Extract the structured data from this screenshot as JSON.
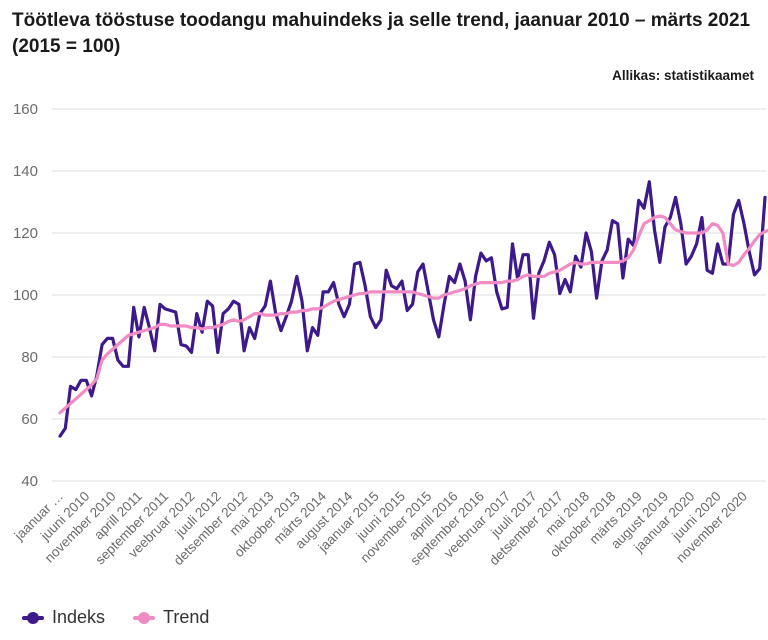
{
  "title": "Töötleva tööstuse toodangu mahuindeks ja selle trend, jaanuar 2010 – märts 2021 (2015 = 100)",
  "source": "Allikas: statistikaamet",
  "colors": {
    "index": "#3d1a8c",
    "trend": "#f08cc3",
    "grid": "#dddddd"
  },
  "chart_data": {
    "type": "line",
    "title": "Töötleva tööstuse toodangu mahuindeks ja selle trend, jaanuar 2010 – märts 2021 (2015 = 100)",
    "xlabel": "",
    "ylabel": "",
    "ylim": [
      40,
      160
    ],
    "yticks": [
      40,
      60,
      80,
      100,
      120,
      140,
      160
    ],
    "grid": true,
    "legend_position": "bottom-left",
    "x_tick_labels": [
      "jaanuar …",
      "juuni 2010",
      "november 2010",
      "aprill 2011",
      "september 2011",
      "veebruar 2012",
      "juuli 2012",
      "detsember 2012",
      "mai 2013",
      "oktoober 2013",
      "märts 2014",
      "august 2014",
      "jaanuar 2015",
      "juuni 2015",
      "november 2015",
      "aprill 2016",
      "september 2016",
      "veebruar 2017",
      "juuli 2017",
      "detsember 2017",
      "mai 2018",
      "oktoober 2018",
      "märts 2019",
      "august 2019",
      "jaanuar 2020",
      "juuni 2020",
      "november 2020"
    ],
    "x_tick_indices": [
      0,
      5,
      10,
      15,
      20,
      25,
      30,
      35,
      40,
      45,
      50,
      55,
      60,
      65,
      70,
      75,
      80,
      85,
      90,
      95,
      100,
      105,
      110,
      115,
      120,
      125,
      130
    ],
    "start": "jaanuar 2010",
    "end": "märts 2021",
    "series": [
      {
        "name": "Indeks",
        "values": [
          54.5,
          57,
          70.5,
          69.5,
          72.5,
          72.5,
          67.5,
          74,
          84,
          86,
          86,
          79,
          77,
          77,
          96,
          86.5,
          96,
          89.5,
          82,
          97,
          95.5,
          95,
          94.5,
          84,
          83.5,
          81.5,
          94,
          88,
          98,
          96.5,
          81.5,
          94,
          95.5,
          98,
          97,
          82,
          89.5,
          86,
          94,
          96.5,
          104.5,
          94,
          88.5,
          93,
          98,
          106,
          98,
          82,
          89.5,
          87,
          101,
          101,
          104,
          97,
          93,
          97,
          110,
          110.5,
          103,
          93,
          89.5,
          92,
          108,
          103,
          102,
          104.5,
          95,
          97,
          107.5,
          110,
          101,
          92,
          86.5,
          97,
          106,
          104,
          110,
          104.5,
          92,
          106,
          113.5,
          111,
          112,
          101,
          95.5,
          96,
          116.5,
          105,
          113,
          113,
          92.5,
          107,
          111,
          117,
          113,
          100.5,
          105,
          101,
          112.5,
          109,
          120,
          114,
          99,
          111,
          114.5,
          124,
          123,
          105.5,
          118,
          116,
          130.5,
          128,
          136.5,
          121,
          110.5,
          122,
          125,
          131.5,
          123,
          110,
          112.5,
          116.5,
          125,
          108,
          107,
          116.5,
          110,
          110,
          126,
          130.5,
          123,
          114,
          106.5,
          108.5,
          131.5
        ]
      },
      {
        "name": "Trend",
        "values": [
          62,
          63.5,
          65,
          66.5,
          68,
          69.5,
          71,
          73,
          79,
          81,
          82.5,
          84,
          85.5,
          87,
          87.5,
          88,
          88.5,
          89,
          89.5,
          90.5,
          90.5,
          90,
          90,
          90,
          90,
          89.5,
          89.5,
          89,
          89.5,
          89.5,
          90,
          90.5,
          91.5,
          92,
          91.5,
          92,
          93,
          94,
          94,
          93.5,
          93.5,
          93.5,
          94,
          94,
          94.5,
          94.5,
          95,
          95,
          95.5,
          95.5,
          96,
          97,
          98,
          98.5,
          99,
          99.5,
          100,
          100.5,
          100.5,
          101,
          101,
          101,
          101,
          101,
          101,
          101,
          101,
          101,
          100.5,
          100,
          99.5,
          99,
          99,
          100,
          100.5,
          101,
          101.5,
          102,
          103,
          103.5,
          104,
          104,
          104,
          104,
          104,
          104.5,
          104.5,
          105,
          106,
          106.5,
          106,
          106,
          106,
          107,
          107.5,
          108,
          109,
          110,
          110.5,
          110,
          110,
          110.5,
          110.5,
          110.5,
          110.5,
          110.5,
          110.5,
          111,
          112,
          114.5,
          119,
          123,
          124,
          125,
          125.5,
          125,
          123,
          121,
          120.5,
          120,
          120,
          120,
          120,
          121,
          123,
          122.5,
          120,
          110,
          109.5,
          110.5,
          113,
          115,
          117.5,
          119.5,
          120.5,
          121,
          120,
          119,
          118.5,
          119.5
        ]
      }
    ]
  },
  "legend": {
    "index_label": "Indeks",
    "trend_label": "Trend"
  }
}
